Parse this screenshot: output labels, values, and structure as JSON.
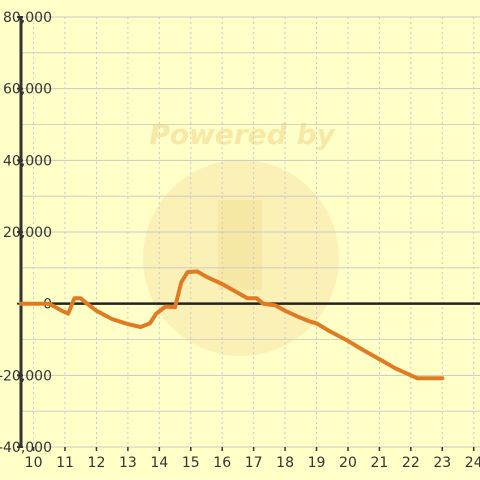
{
  "chart_data": {
    "type": "line",
    "title": "",
    "xlabel": "",
    "ylabel": "",
    "xlim": [
      9.6,
      24.2
    ],
    "ylim": [
      -40000,
      80000
    ],
    "x_ticks": [
      10,
      11,
      12,
      13,
      14,
      15,
      16,
      17,
      18,
      19,
      20,
      21,
      22,
      23,
      24
    ],
    "x_tick_labels": [
      "10",
      "11",
      "12",
      "13",
      "14",
      "15",
      "16",
      "17",
      "18",
      "19",
      "20",
      "21",
      "22",
      "23",
      "24"
    ],
    "y_ticks": [
      -40000,
      -20000,
      0,
      20000,
      40000,
      60000,
      80000
    ],
    "y_tick_labels": [
      "-40,000",
      "-20,000",
      "0",
      "20,000",
      "40,000",
      "60,000",
      "80,000"
    ],
    "grid": true,
    "legend": "none",
    "series": [
      {
        "color": "#e07b24",
        "x": [
          9.6,
          10.5,
          10.9,
          11.1,
          11.3,
          11.5,
          11.7,
          12.0,
          12.5,
          13.0,
          13.4,
          13.7,
          13.9,
          14.2,
          14.5,
          14.7,
          14.9,
          15.2,
          15.5,
          16.0,
          16.5,
          16.8,
          17.1,
          17.3,
          17.7,
          18.0,
          18.4,
          18.8,
          19.0,
          19.4,
          20.0,
          20.4,
          21.0,
          21.5,
          22.0,
          22.2,
          23.0
        ],
        "y": [
          0,
          0,
          -2000,
          -2800,
          1500,
          1500,
          0,
          -2000,
          -4300,
          -5700,
          -6500,
          -5500,
          -2800,
          -800,
          -1000,
          6000,
          8800,
          9000,
          7500,
          5500,
          3000,
          1500,
          1500,
          0,
          -500,
          -2000,
          -3600,
          -5000,
          -5500,
          -7600,
          -10400,
          -12500,
          -15500,
          -18000,
          -20000,
          -20800,
          -20800
        ]
      }
    ],
    "watermark": "Powered by"
  },
  "colors": {
    "background": "#ffffc8",
    "grid": "#c8c8c8",
    "axis": "#333333",
    "zero_line": "#222222",
    "line": "#e07b24"
  }
}
